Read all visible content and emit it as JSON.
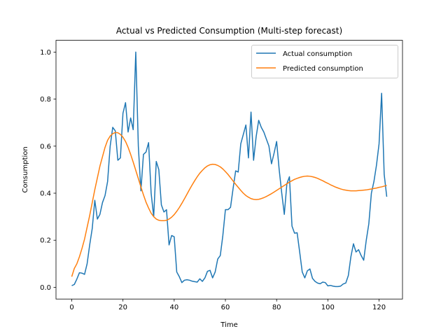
{
  "chart_data": {
    "type": "line",
    "title": "Actual vs Predicted Consumption (Multi-step forecast)",
    "xlabel": "Time",
    "ylabel": "Consumption",
    "xlim": [
      -6.15,
      129.15
    ],
    "ylim": [
      -0.05,
      1.05
    ],
    "xticks": [
      0,
      20,
      40,
      60,
      80,
      100,
      120
    ],
    "yticks": [
      0.0,
      0.2,
      0.4,
      0.6,
      0.8,
      1.0
    ],
    "xtick_labels": [
      "0",
      "20",
      "40",
      "60",
      "80",
      "100",
      "120"
    ],
    "ytick_labels": [
      "0.0",
      "0.2",
      "0.4",
      "0.6",
      "0.8",
      "1.0"
    ],
    "grid": false,
    "legend": "top-right",
    "x": [
      0,
      1,
      2,
      3,
      4,
      5,
      6,
      7,
      8,
      9,
      10,
      11,
      12,
      13,
      14,
      15,
      16,
      17,
      18,
      19,
      20,
      21,
      22,
      23,
      24,
      25,
      26,
      27,
      28,
      29,
      30,
      31,
      32,
      33,
      34,
      35,
      36,
      37,
      38,
      39,
      40,
      41,
      42,
      43,
      44,
      45,
      46,
      47,
      48,
      49,
      50,
      51,
      52,
      53,
      54,
      55,
      56,
      57,
      58,
      59,
      60,
      61,
      62,
      63,
      64,
      65,
      66,
      67,
      68,
      69,
      70,
      71,
      72,
      73,
      74,
      75,
      76,
      77,
      78,
      79,
      80,
      81,
      82,
      83,
      84,
      85,
      86,
      87,
      88,
      89,
      90,
      91,
      92,
      93,
      94,
      95,
      96,
      97,
      98,
      99,
      100,
      101,
      102,
      103,
      104,
      105,
      106,
      107,
      108,
      109,
      110,
      111,
      112,
      113,
      114,
      115,
      116,
      117,
      118,
      119,
      120,
      121,
      122,
      123
    ],
    "series": [
      {
        "name": "Actual consumption",
        "color": "#1f77b4",
        "values": [
          0.007,
          0.012,
          0.035,
          0.062,
          0.06,
          0.055,
          0.1,
          0.18,
          0.25,
          0.37,
          0.29,
          0.31,
          0.36,
          0.39,
          0.45,
          0.6,
          0.68,
          0.665,
          0.54,
          0.55,
          0.74,
          0.785,
          0.66,
          0.72,
          0.67,
          1.0,
          0.6,
          0.41,
          0.565,
          0.575,
          0.615,
          0.4,
          0.3,
          0.535,
          0.5,
          0.35,
          0.32,
          0.33,
          0.18,
          0.22,
          0.215,
          0.065,
          0.045,
          0.02,
          0.03,
          0.032,
          0.03,
          0.026,
          0.024,
          0.022,
          0.036,
          0.025,
          0.04,
          0.068,
          0.072,
          0.04,
          0.065,
          0.12,
          0.135,
          0.22,
          0.33,
          0.33,
          0.34,
          0.42,
          0.495,
          0.49,
          0.61,
          0.65,
          0.69,
          0.55,
          0.745,
          0.54,
          0.64,
          0.71,
          0.68,
          0.66,
          0.63,
          0.6,
          0.525,
          0.57,
          0.62,
          0.5,
          0.4,
          0.31,
          0.44,
          0.47,
          0.26,
          0.23,
          0.232,
          0.15,
          0.065,
          0.04,
          0.07,
          0.078,
          0.038,
          0.025,
          0.018,
          0.015,
          0.022,
          0.02,
          0.006,
          0.008,
          0.005,
          0.003,
          0.003,
          0.005,
          0.014,
          0.018,
          0.05,
          0.13,
          0.185,
          0.15,
          0.16,
          0.135,
          0.115,
          0.2,
          0.27,
          0.4,
          0.45,
          0.52,
          0.61,
          0.825,
          0.48,
          0.385
        ]
      },
      {
        "name": "Predicted consumption",
        "color": "#ff7f0e",
        "values": [
          0.045,
          0.08,
          0.1,
          0.13,
          0.165,
          0.205,
          0.255,
          0.305,
          0.36,
          0.415,
          0.465,
          0.515,
          0.555,
          0.595,
          0.625,
          0.643,
          0.653,
          0.658,
          0.657,
          0.65,
          0.638,
          0.62,
          0.595,
          0.565,
          0.532,
          0.497,
          0.462,
          0.427,
          0.393,
          0.362,
          0.337,
          0.315,
          0.3,
          0.29,
          0.285,
          0.283,
          0.283,
          0.285,
          0.29,
          0.298,
          0.309,
          0.323,
          0.339,
          0.357,
          0.376,
          0.396,
          0.416,
          0.435,
          0.453,
          0.47,
          0.485,
          0.497,
          0.508,
          0.516,
          0.521,
          0.523,
          0.522,
          0.518,
          0.512,
          0.503,
          0.492,
          0.48,
          0.466,
          0.452,
          0.438,
          0.425,
          0.412,
          0.4,
          0.39,
          0.383,
          0.377,
          0.374,
          0.373,
          0.374,
          0.377,
          0.381,
          0.386,
          0.392,
          0.398,
          0.405,
          0.412,
          0.419,
          0.426,
          0.433,
          0.44,
          0.447,
          0.453,
          0.459,
          0.463,
          0.467,
          0.47,
          0.472,
          0.473,
          0.472,
          0.47,
          0.467,
          0.463,
          0.458,
          0.453,
          0.447,
          0.442,
          0.436,
          0.431,
          0.426,
          0.422,
          0.418,
          0.415,
          0.413,
          0.411,
          0.41,
          0.41,
          0.41,
          0.411,
          0.412,
          0.413,
          0.414,
          0.416,
          0.418,
          0.42,
          0.422,
          0.425,
          0.427,
          0.43,
          0.433
        ]
      }
    ]
  }
}
